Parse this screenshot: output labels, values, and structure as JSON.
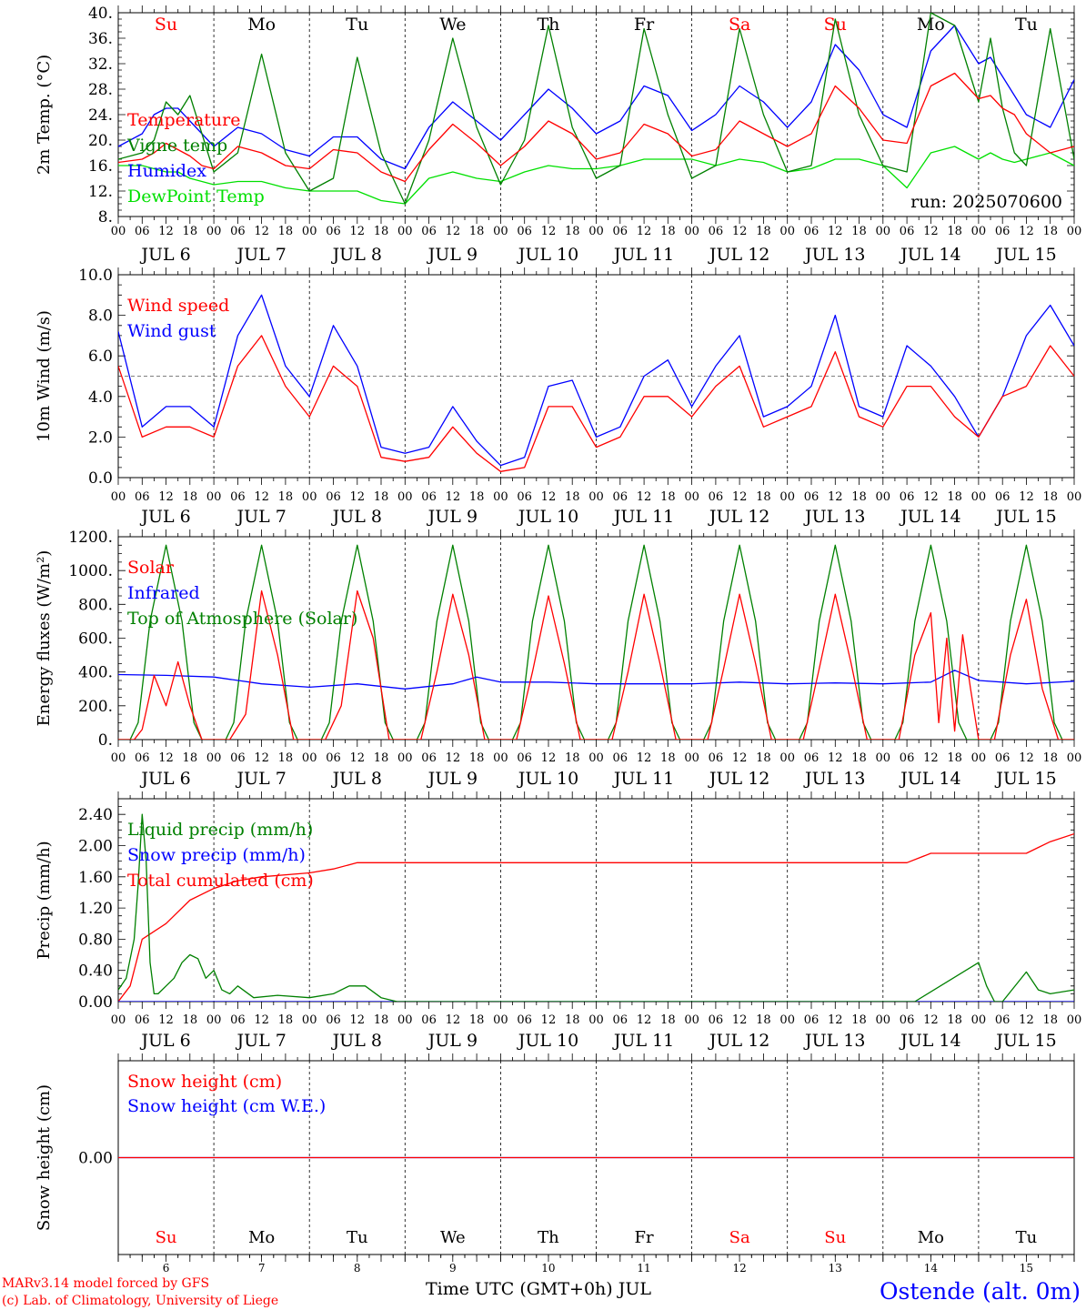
{
  "days_short": [
    "Su",
    "Mo",
    "Tu",
    "We",
    "Th",
    "Fr",
    "Sa",
    "Su",
    "Mo",
    "Tu"
  ],
  "day_colors": [
    "#ff0000",
    "#000000",
    "#000000",
    "#000000",
    "#000000",
    "#000000",
    "#ff0000",
    "#ff0000",
    "#000000",
    "#000000"
  ],
  "date_labels": [
    "JUL  6",
    "JUL  7",
    "JUL  8",
    "JUL  9",
    "JUL 10",
    "JUL 11",
    "JUL 12",
    "JUL 13",
    "JUL 14",
    "JUL 15"
  ],
  "day_numbers": [
    "6",
    "7",
    "8",
    "9",
    "10",
    "11",
    "12",
    "13",
    "14",
    "15"
  ],
  "hour_ticks": [
    "00",
    "06",
    "12",
    "18"
  ],
  "hour_last": "00",
  "x_axis_title": "Time UTC (GMT+0h) JUL",
  "footer": {
    "line1": "MARv3.14 model forced by GFS",
    "line2": "(c) Lab. of Climatology, University of Liege",
    "station": "Ostende (alt. 0m)"
  },
  "colors": {
    "red": "#ff0000",
    "green": "#008000",
    "blue": "#0000ff",
    "lightgreen": "#00e000"
  },
  "chart_data": [
    {
      "type": "line",
      "ylabel": "2m Temp. (°C)",
      "ylim": [
        8,
        40
      ],
      "yticks": [
        "8.",
        "12.",
        "16.",
        "20.",
        "24.",
        "28.",
        "32.",
        "36.",
        "40."
      ],
      "x_unit": "hours since 2025-07-06 00 UTC",
      "annotation": "run: 2025070600",
      "day_header": true,
      "series": [
        {
          "name": "Temperature",
          "color": "#ff0000",
          "x": [
            0,
            6,
            9,
            12,
            15,
            18,
            21,
            24,
            30,
            36,
            42,
            48,
            54,
            60,
            66,
            72,
            78,
            84,
            90,
            96,
            102,
            108,
            114,
            120,
            126,
            132,
            138,
            144,
            150,
            156,
            162,
            168,
            174,
            180,
            186,
            192,
            198,
            204,
            210,
            216,
            219,
            222,
            225,
            228,
            234,
            240
          ],
          "y": [
            16.5,
            17,
            18,
            19.5,
            18.5,
            17.5,
            16,
            15.5,
            19,
            18,
            16,
            15.5,
            18.5,
            18,
            15,
            13.5,
            18.5,
            22.5,
            19.5,
            16,
            19,
            23,
            21,
            17,
            18,
            22.5,
            21,
            17.5,
            18.5,
            23,
            21,
            19,
            21,
            28.5,
            25,
            20,
            19.5,
            28.5,
            30.5,
            26.5,
            27,
            25,
            24,
            21,
            18,
            19
          ]
        },
        {
          "name": "Vigne temp",
          "color": "#008000",
          "x": [
            0,
            6,
            9,
            12,
            15,
            18,
            21,
            24,
            30,
            36,
            42,
            48,
            54,
            60,
            66,
            72,
            78,
            84,
            90,
            96,
            102,
            108,
            114,
            120,
            126,
            132,
            138,
            144,
            150,
            156,
            162,
            168,
            174,
            180,
            186,
            192,
            198,
            204,
            210,
            216,
            219,
            222,
            225,
            228,
            234,
            240
          ],
          "y": [
            17,
            18,
            20,
            26,
            24,
            27,
            21,
            15,
            18,
            33.5,
            18,
            12,
            14,
            33,
            18,
            10,
            20,
            36,
            22,
            13,
            20,
            38,
            22,
            14,
            16,
            37.5,
            24,
            14,
            16,
            37.5,
            24,
            15,
            16,
            39,
            24,
            16,
            15,
            40,
            38,
            26,
            36,
            25,
            18,
            16,
            37.5,
            17
          ]
        },
        {
          "name": "Humidex",
          "color": "#0000ff",
          "x": [
            0,
            6,
            9,
            12,
            15,
            18,
            21,
            24,
            30,
            36,
            42,
            48,
            54,
            60,
            66,
            72,
            78,
            84,
            90,
            96,
            102,
            108,
            114,
            120,
            126,
            132,
            138,
            144,
            150,
            156,
            162,
            168,
            174,
            180,
            186,
            192,
            198,
            204,
            210,
            216,
            219,
            222,
            225,
            228,
            234,
            240
          ],
          "y": [
            19,
            21,
            24,
            25,
            25,
            23,
            21,
            19,
            22,
            21,
            18.5,
            17.5,
            20.5,
            20.5,
            17,
            15.5,
            22,
            26,
            23,
            20,
            24,
            28,
            25,
            21,
            23,
            28.5,
            27,
            21.5,
            24,
            28.5,
            26,
            22,
            26,
            35,
            31,
            24,
            22,
            34,
            38,
            32,
            33,
            30,
            27,
            24,
            22,
            29.5
          ]
        },
        {
          "name": "DewPoint Temp",
          "color": "#00e000",
          "x": [
            0,
            6,
            9,
            12,
            15,
            18,
            21,
            24,
            30,
            36,
            42,
            48,
            54,
            60,
            66,
            72,
            78,
            84,
            90,
            96,
            102,
            108,
            114,
            120,
            126,
            132,
            138,
            144,
            150,
            156,
            162,
            168,
            174,
            180,
            186,
            192,
            198,
            204,
            210,
            216,
            219,
            222,
            225,
            228,
            234,
            240
          ],
          "y": [
            16,
            16,
            15.5,
            15,
            15,
            14,
            13.5,
            13,
            13.5,
            13.5,
            12.5,
            12,
            12,
            12,
            10.5,
            10,
            14,
            15,
            14,
            13.5,
            15,
            16,
            15.5,
            15.5,
            16,
            17,
            17,
            17,
            16,
            17,
            16.5,
            15,
            15.5,
            17,
            17,
            16,
            12.5,
            18,
            19,
            17,
            18,
            17,
            16.5,
            17,
            18,
            16
          ]
        }
      ]
    },
    {
      "type": "line",
      "ylabel": "10m Wind (m/s)",
      "ylim": [
        0,
        10
      ],
      "yticks": [
        "0.0",
        "2.0",
        "4.0",
        "6.0",
        "8.0",
        "10.0"
      ],
      "x_unit": "hours since 2025-07-06 00 UTC",
      "reference_line": 5,
      "series": [
        {
          "name": "Wind speed",
          "color": "#ff0000",
          "x": [
            0,
            6,
            12,
            18,
            24,
            30,
            36,
            42,
            48,
            54,
            60,
            66,
            72,
            78,
            84,
            90,
            96,
            102,
            108,
            114,
            120,
            126,
            132,
            138,
            144,
            150,
            156,
            162,
            168,
            174,
            180,
            186,
            192,
            198,
            204,
            210,
            216,
            222,
            228,
            234,
            240
          ],
          "y": [
            5.5,
            2,
            2.5,
            2.5,
            2,
            5.5,
            7,
            4.5,
            3,
            5.5,
            4.5,
            1,
            0.8,
            1,
            2.5,
            1.2,
            0.3,
            0.5,
            3.5,
            3.5,
            1.5,
            2,
            4,
            4,
            3,
            4.5,
            5.5,
            2.5,
            3,
            3.5,
            6.2,
            3,
            2.5,
            4.5,
            4.5,
            3,
            2,
            4,
            4.5,
            6.5,
            5
          ]
        },
        {
          "name": "Wind gust",
          "color": "#0000ff",
          "x": [
            0,
            6,
            12,
            18,
            24,
            30,
            36,
            42,
            48,
            54,
            60,
            66,
            72,
            78,
            84,
            90,
            96,
            102,
            108,
            114,
            120,
            126,
            132,
            138,
            144,
            150,
            156,
            162,
            168,
            174,
            180,
            186,
            192,
            198,
            204,
            210,
            216,
            222,
            228,
            234,
            240
          ],
          "y": [
            7.2,
            2.5,
            3.5,
            3.5,
            2.5,
            7,
            9,
            5.5,
            4,
            7.5,
            5.5,
            1.5,
            1.2,
            1.5,
            3.5,
            1.8,
            0.6,
            1,
            4.5,
            4.8,
            2,
            2.5,
            5,
            5.8,
            3.5,
            5.5,
            7,
            3,
            3.5,
            4.5,
            8,
            3.5,
            3,
            6.5,
            5.5,
            4,
            2,
            4,
            7,
            8.5,
            6.5
          ]
        }
      ]
    },
    {
      "type": "line",
      "ylabel": "Energy fluxes (W/m²)",
      "ylim": [
        0,
        1200
      ],
      "yticks": [
        "0.",
        "200.",
        "400.",
        "600.",
        "800.",
        "1000.",
        "1200."
      ],
      "x_unit": "hours since 2025-07-06 00 UTC",
      "series": [
        {
          "name": "Solar",
          "color": "#ff0000",
          "x": [
            0,
            4,
            6,
            9,
            12,
            15,
            18,
            21,
            24,
            28,
            32,
            36,
            40,
            44,
            48,
            52,
            56,
            60,
            64,
            68,
            72,
            76,
            80,
            84,
            88,
            92,
            96,
            100,
            104,
            108,
            112,
            116,
            120,
            124,
            128,
            132,
            136,
            140,
            144,
            148,
            152,
            156,
            160,
            164,
            168,
            172,
            176,
            180,
            184,
            188,
            192,
            196,
            200,
            204,
            206,
            208,
            210,
            212,
            214,
            216,
            218,
            220,
            224,
            228,
            232,
            236,
            240
          ],
          "y": [
            0,
            0,
            60,
            380,
            200,
            460,
            200,
            0,
            0,
            0,
            150,
            880,
            500,
            0,
            0,
            0,
            200,
            880,
            600,
            0,
            0,
            0,
            400,
            860,
            500,
            0,
            0,
            0,
            400,
            850,
            450,
            0,
            0,
            0,
            400,
            860,
            450,
            0,
            0,
            0,
            420,
            860,
            450,
            0,
            0,
            0,
            420,
            860,
            450,
            0,
            0,
            0,
            500,
            750,
            100,
            600,
            50,
            620,
            300,
            0,
            0,
            0,
            500,
            830,
            300,
            0,
            0
          ]
        },
        {
          "name": "Infrared",
          "color": "#0000ff",
          "x": [
            0,
            12,
            24,
            36,
            48,
            60,
            72,
            84,
            90,
            96,
            108,
            120,
            132,
            144,
            156,
            168,
            180,
            192,
            204,
            210,
            216,
            228,
            240
          ],
          "y": [
            385,
            380,
            370,
            330,
            310,
            330,
            300,
            330,
            370,
            340,
            340,
            330,
            330,
            330,
            340,
            330,
            335,
            330,
            340,
            410,
            350,
            330,
            345
          ]
        },
        {
          "name": "Top of Atmosphere (Solar)",
          "color": "#008000",
          "x": [
            0,
            3,
            5,
            8,
            12,
            16,
            19,
            21,
            24
          ],
          "y": [
            0,
            0,
            100,
            700,
            1150,
            700,
            100,
            0,
            0
          ],
          "repeat_daily": true
        }
      ]
    },
    {
      "type": "line",
      "ylabel": "Precip (mm/h)",
      "ylim": [
        0,
        2.6
      ],
      "yticks": [
        "0.00",
        "0.40",
        "0.80",
        "1.20",
        "1.60",
        "2.00",
        "2.40"
      ],
      "x_unit": "hours since 2025-07-06 00 UTC",
      "series": [
        {
          "name": "Liquid precip (mm/h)",
          "color": "#008000",
          "x": [
            0,
            2,
            4,
            5,
            6,
            7,
            8,
            9,
            10,
            12,
            14,
            16,
            18,
            20,
            22,
            24,
            26,
            28,
            30,
            34,
            40,
            48,
            54,
            58,
            62,
            66,
            70,
            72,
            192,
            196,
            200,
            216,
            218,
            220,
            222,
            228,
            231,
            234,
            240
          ],
          "y": [
            0.15,
            0.3,
            0.8,
            1.5,
            2.4,
            1.8,
            0.5,
            0.1,
            0.1,
            0.2,
            0.3,
            0.5,
            0.6,
            0.55,
            0.3,
            0.4,
            0.15,
            0.1,
            0.2,
            0.05,
            0.08,
            0.05,
            0.1,
            0.2,
            0.2,
            0.05,
            0,
            0,
            0,
            0,
            0,
            0.5,
            0.2,
            0,
            0,
            0.38,
            0.15,
            0.1,
            0.15
          ]
        },
        {
          "name": "Snow precip (mm/h)",
          "color": "#0000ff",
          "x": [
            0,
            240
          ],
          "y": [
            0,
            0
          ]
        },
        {
          "name": "Total cumulated (cm)",
          "color": "#ff0000",
          "x": [
            0,
            3,
            6,
            9,
            12,
            18,
            24,
            30,
            36,
            48,
            54,
            60,
            66,
            72,
            120,
            192,
            198,
            204,
            216,
            228,
            234,
            240
          ],
          "y": [
            0,
            0.2,
            0.8,
            0.9,
            1.0,
            1.3,
            1.45,
            1.55,
            1.6,
            1.65,
            1.7,
            1.78,
            1.78,
            1.78,
            1.78,
            1.78,
            1.78,
            1.9,
            1.9,
            1.9,
            2.05,
            2.15
          ]
        }
      ]
    },
    {
      "type": "line",
      "ylabel": "Snow height (cm)",
      "ylim": [
        -1,
        1
      ],
      "yticks": [
        "0.00"
      ],
      "x_unit": "hours since 2025-07-06 00 UTC",
      "day_footer": true,
      "series": [
        {
          "name": "Snow height (cm)",
          "color": "#ff0000",
          "x": [
            0,
            240
          ],
          "y": [
            0,
            0
          ]
        },
        {
          "name": "Snow height (cm W.E.)",
          "color": "#0000ff",
          "x": [
            0,
            240
          ],
          "y": [
            0,
            0
          ]
        }
      ]
    }
  ]
}
